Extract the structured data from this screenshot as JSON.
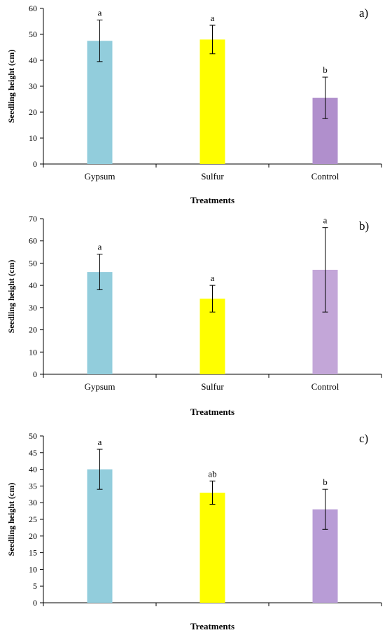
{
  "chart_data": [
    {
      "type": "bar",
      "panel_label": "a)",
      "categories": [
        "Gypsum",
        "Sulfur",
        "Control"
      ],
      "values": [
        47.5,
        48,
        25.5
      ],
      "errors": [
        8,
        5.5,
        8
      ],
      "significance": [
        "a",
        "a",
        "b"
      ],
      "colors": [
        "#92CDDC",
        "#FFFF00",
        "#B08FCC"
      ],
      "ylabel": "Seedling  height (cm)",
      "xlabel": "Treatments",
      "ylim": [
        0,
        60
      ],
      "yticks": [
        0,
        10,
        20,
        30,
        40,
        50,
        60
      ],
      "show_category_labels": true
    },
    {
      "type": "bar",
      "panel_label": "b)",
      "categories": [
        "Gypsum",
        "Sulfur",
        "Control"
      ],
      "values": [
        46,
        34,
        47
      ],
      "errors": [
        8,
        6,
        19
      ],
      "significance": [
        "a",
        "a",
        "a"
      ],
      "colors": [
        "#92CDDC",
        "#FFFF00",
        "#C3A6D8"
      ],
      "ylabel": "Seedling height (cm)",
      "xlabel": "Treatments",
      "ylim": [
        0,
        70
      ],
      "yticks": [
        0,
        10,
        20,
        30,
        40,
        50,
        60,
        70
      ],
      "show_category_labels": true
    },
    {
      "type": "bar",
      "panel_label": "c)",
      "categories": [
        "",
        "",
        ""
      ],
      "values": [
        40,
        33,
        28
      ],
      "errors": [
        6,
        3.5,
        6
      ],
      "significance": [
        "a",
        "ab",
        "b"
      ],
      "colors": [
        "#92CDDC",
        "#FFFF00",
        "#B89CD6"
      ],
      "ylabel": "Seedling height (cm)",
      "xlabel": "Treatments",
      "ylim": [
        0,
        50
      ],
      "yticks": [
        0,
        5,
        10,
        15,
        20,
        25,
        30,
        35,
        40,
        45,
        50
      ],
      "show_category_labels": false
    }
  ]
}
